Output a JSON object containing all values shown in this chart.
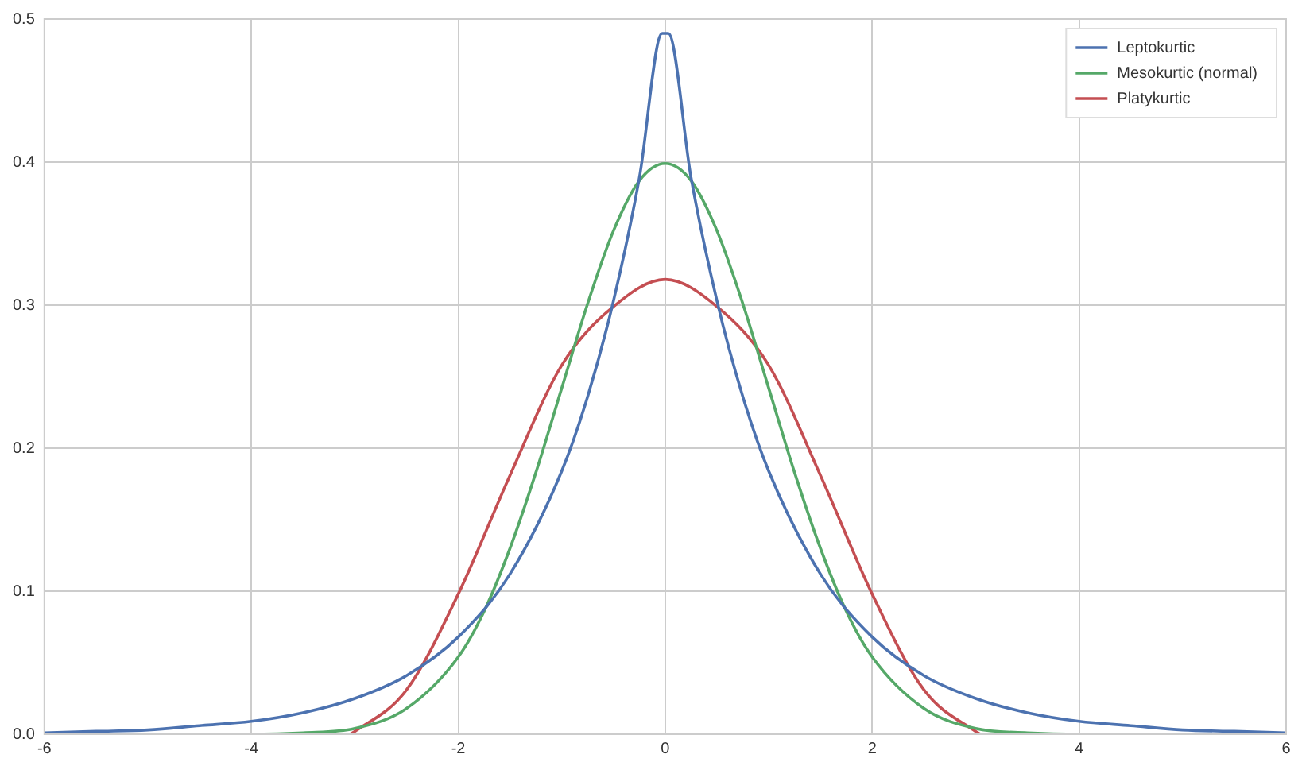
{
  "chart_data": {
    "type": "line",
    "xlim": [
      -6,
      6
    ],
    "xticks": [
      -6,
      -4,
      -2,
      0,
      2,
      4,
      6
    ],
    "ylim": [
      0,
      0.5
    ],
    "yticks": [
      {
        "value": 0,
        "label": "0.0"
      },
      {
        "value": 0.1,
        "label": "0.1"
      },
      {
        "value": 0.2,
        "label": "0.2"
      },
      {
        "value": 0.3,
        "label": "0.3"
      },
      {
        "value": 0.4,
        "label": "0.4"
      },
      {
        "value": 0.5,
        "label": "0.5"
      }
    ],
    "grid": true,
    "legend": "top right",
    "marker": "none",
    "line_style": "solid",
    "series": [
      {
        "name": "Leptokurtic",
        "color": "#4c72b0",
        "x": [
          -6,
          -5.5,
          -5,
          -4.5,
          -4,
          -3.5,
          -3,
          -2.5,
          -2,
          -1.5,
          -1,
          -0.75,
          -0.5,
          -0.25,
          -0.03,
          0.03,
          0.25,
          0.5,
          0.75,
          1,
          1.5,
          2,
          2.5,
          3,
          3.5,
          4,
          4.5,
          5,
          5.5,
          6
        ],
        "values": [
          0.001,
          0.002,
          0.003,
          0.006,
          0.009,
          0.015,
          0.025,
          0.041,
          0.068,
          0.112,
          0.184,
          0.236,
          0.303,
          0.389,
          0.49,
          0.49,
          0.389,
          0.303,
          0.236,
          0.184,
          0.112,
          0.068,
          0.041,
          0.025,
          0.015,
          0.009,
          0.006,
          0.003,
          0.002,
          0.001
        ]
      },
      {
        "name": "Mesokurtic (normal)",
        "color": "#55a868",
        "x": [
          -6,
          -5,
          -4,
          -3.5,
          -3,
          -2.5,
          -2,
          -1.75,
          -1.5,
          -1.25,
          -1,
          -0.75,
          -0.5,
          -0.25,
          0,
          0.25,
          0.5,
          0.75,
          1,
          1.25,
          1.5,
          1.75,
          2,
          2.5,
          3,
          3.5,
          4,
          5,
          6
        ],
        "values": [
          0,
          0,
          0,
          0.001,
          0.004,
          0.018,
          0.054,
          0.086,
          0.13,
          0.183,
          0.242,
          0.301,
          0.352,
          0.387,
          0.399,
          0.387,
          0.352,
          0.301,
          0.242,
          0.183,
          0.13,
          0.086,
          0.054,
          0.018,
          0.004,
          0.001,
          0,
          0,
          0
        ]
      },
      {
        "name": "Platykurtic",
        "color": "#c44e52",
        "x": [
          -6,
          -4,
          -3.05,
          -3,
          -2.5,
          -2,
          -1.5,
          -1,
          -0.5,
          0,
          0.5,
          1,
          1.5,
          2,
          2.5,
          3,
          3.05,
          4,
          6
        ],
        "values": [
          0,
          0,
          0,
          0.002,
          0.031,
          0.098,
          0.181,
          0.258,
          0.299,
          0.318,
          0.299,
          0.258,
          0.181,
          0.098,
          0.031,
          0.002,
          0,
          0,
          0
        ]
      }
    ]
  }
}
